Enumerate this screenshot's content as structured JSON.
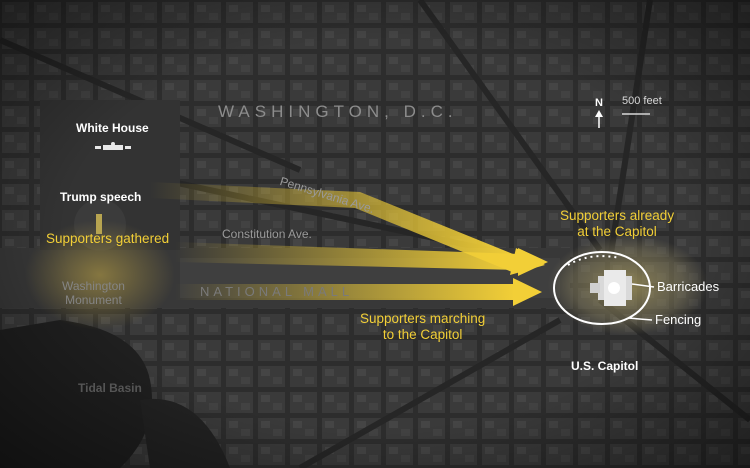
{
  "map": {
    "city_label": "WASHINGTON, D.C.",
    "mall_label": "NATIONAL MALL",
    "streets": {
      "pennsylvania": "Pennsylvania Ave.",
      "constitution": "Constitution Ave."
    },
    "landmarks": {
      "white_house": "White House",
      "trump_speech": "Trump speech",
      "washington_monument": [
        "Washington",
        "Monument"
      ],
      "tidal_basin": "Tidal Basin",
      "capitol": "U.S. Capitol"
    },
    "annotations": {
      "supporters_gathered": "Supporters gathered",
      "supporters_marching": [
        "Supporters marching",
        "to the Capitol"
      ],
      "supporters_already": [
        "Supporters already",
        "at the Capitol"
      ],
      "barricades": "Barricades",
      "fencing": "Fencing"
    },
    "scale": {
      "north": "N",
      "distance": "500 feet"
    },
    "colors": {
      "highlight": "#f2cf37",
      "background": "#2b2b2b",
      "capitol_glow": "#8a8260"
    },
    "icons": [
      "north-arrow-icon",
      "flow-arrow-icon"
    ]
  }
}
